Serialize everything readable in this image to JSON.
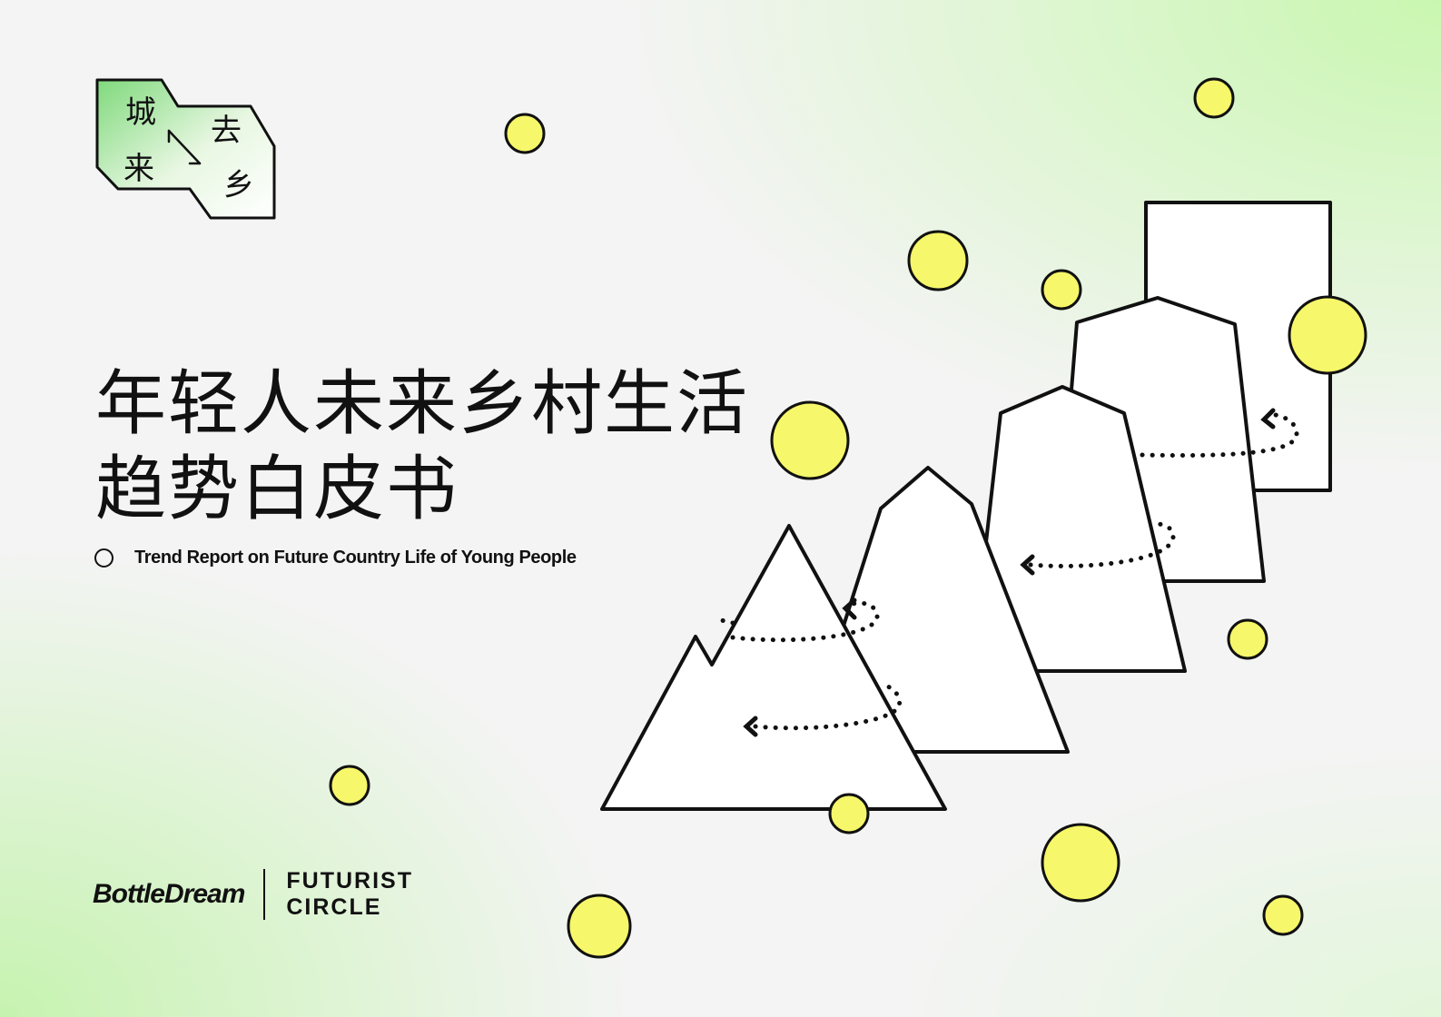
{
  "badge": {
    "chars": [
      "城",
      "去",
      "来",
      "乡"
    ]
  },
  "title": {
    "line1": "年轻人未来乡村生活",
    "line2": "趋势白皮书"
  },
  "subtitle": "Trend Report on Future Country Life of Young People",
  "logos": {
    "bottledream": "BottleDream",
    "futurist_line1": "FUTURIST",
    "futurist_line2": "CIRCLE"
  },
  "colors": {
    "accent_yellow": "#f6f76a",
    "badge_green": "#7fd97c",
    "stroke": "#111111"
  }
}
